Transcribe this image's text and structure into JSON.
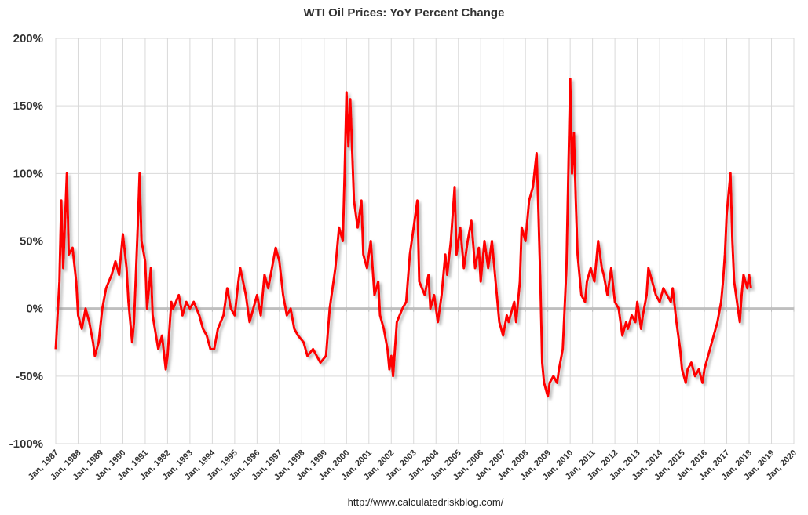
{
  "chart_data": {
    "type": "line",
    "title": "WTI Oil Prices: YoY Percent Change",
    "footer": "http://www.calculatedriskblog.com/",
    "xlabel": "",
    "ylabel": "",
    "ylim": [
      -100,
      200
    ],
    "yticks": [
      "200%",
      "150%",
      "100%",
      "50%",
      "0%",
      "-50%",
      "-100%"
    ],
    "ytick_values": [
      200,
      150,
      100,
      50,
      0,
      -50,
      -100
    ],
    "xlim": [
      "1987-01",
      "2020-01"
    ],
    "xticks": [
      "Jan, 1987",
      "Jan, 1988",
      "Jan, 1989",
      "Jan, 1990",
      "Jan, 1991",
      "Jan, 1992",
      "Jan, 1993",
      "Jan, 1994",
      "Jan, 1995",
      "Jan, 1996",
      "Jan, 1997",
      "Jan, 1998",
      "Jan, 1999",
      "Jan, 2000",
      "Jan, 2001",
      "Jan, 2002",
      "Jan, 2003",
      "Jan, 2004",
      "Jan, 2005",
      "Jan, 2006",
      "Jan, 2007",
      "Jan, 2008",
      "Jan, 2009",
      "Jan, 2010",
      "Jan, 2011",
      "Jan, 2012",
      "Jan, 2013",
      "Jan, 2014",
      "Jan, 2015",
      "Jan, 2016",
      "Jan, 2017",
      "Jan, 2018",
      "Jan, 2019",
      "Jan, 2020"
    ],
    "grid": true,
    "colors": {
      "series": "#ff0000",
      "zero_line": "#bfbfbf",
      "grid": "#d9d9d9"
    },
    "series": [
      {
        "points": [
          [
            "1987-01",
            -30
          ],
          [
            "1987-03",
            20
          ],
          [
            "1987-04",
            80
          ],
          [
            "1987-05",
            30
          ],
          [
            "1987-07",
            100
          ],
          [
            "1987-08",
            40
          ],
          [
            "1987-10",
            45
          ],
          [
            "1987-12",
            20
          ],
          [
            "1988-01",
            -5
          ],
          [
            "1988-03",
            -15
          ],
          [
            "1988-05",
            0
          ],
          [
            "1988-07",
            -10
          ],
          [
            "1988-09",
            -25
          ],
          [
            "1988-10",
            -35
          ],
          [
            "1988-12",
            -25
          ],
          [
            "1989-02",
            0
          ],
          [
            "1989-04",
            15
          ],
          [
            "1989-07",
            25
          ],
          [
            "1989-09",
            35
          ],
          [
            "1989-11",
            25
          ],
          [
            "1990-01",
            55
          ],
          [
            "1990-03",
            30
          ],
          [
            "1990-04",
            5
          ],
          [
            "1990-06",
            -25
          ],
          [
            "1990-07",
            -10
          ],
          [
            "1990-09",
            60
          ],
          [
            "1990-10",
            100
          ],
          [
            "1990-11",
            50
          ],
          [
            "1991-01",
            35
          ],
          [
            "1991-02",
            0
          ],
          [
            "1991-04",
            30
          ],
          [
            "1991-05",
            -5
          ],
          [
            "1991-08",
            -30
          ],
          [
            "1991-10",
            -20
          ],
          [
            "1991-12",
            -45
          ],
          [
            "1992-01",
            -35
          ],
          [
            "1992-03",
            5
          ],
          [
            "1992-04",
            0
          ],
          [
            "1992-07",
            10
          ],
          [
            "1992-09",
            -5
          ],
          [
            "1992-11",
            5
          ],
          [
            "1993-01",
            0
          ],
          [
            "1993-03",
            5
          ],
          [
            "1993-06",
            -5
          ],
          [
            "1993-08",
            -15
          ],
          [
            "1993-10",
            -20
          ],
          [
            "1993-12",
            -30
          ],
          [
            "1994-02",
            -30
          ],
          [
            "1994-04",
            -15
          ],
          [
            "1994-07",
            -5
          ],
          [
            "1994-09",
            15
          ],
          [
            "1994-11",
            0
          ],
          [
            "1995-01",
            -5
          ],
          [
            "1995-03",
            20
          ],
          [
            "1995-04",
            30
          ],
          [
            "1995-07",
            10
          ],
          [
            "1995-09",
            -10
          ],
          [
            "1995-11",
            0
          ],
          [
            "1996-01",
            10
          ],
          [
            "1996-03",
            -5
          ],
          [
            "1996-05",
            25
          ],
          [
            "1996-07",
            15
          ],
          [
            "1996-09",
            30
          ],
          [
            "1996-11",
            45
          ],
          [
            "1997-01",
            35
          ],
          [
            "1997-03",
            10
          ],
          [
            "1997-05",
            -5
          ],
          [
            "1997-07",
            0
          ],
          [
            "1997-09",
            -15
          ],
          [
            "1997-11",
            -20
          ],
          [
            "1998-02",
            -25
          ],
          [
            "1998-04",
            -35
          ],
          [
            "1998-07",
            -30
          ],
          [
            "1998-09",
            -35
          ],
          [
            "1998-11",
            -40
          ],
          [
            "1999-02",
            -35
          ],
          [
            "1999-04",
            0
          ],
          [
            "1999-07",
            30
          ],
          [
            "1999-09",
            60
          ],
          [
            "1999-11",
            50
          ],
          [
            "1999-12",
            100
          ],
          [
            "2000-01",
            160
          ],
          [
            "2000-02",
            120
          ],
          [
            "2000-03",
            155
          ],
          [
            "2000-05",
            80
          ],
          [
            "2000-07",
            60
          ],
          [
            "2000-09",
            80
          ],
          [
            "2000-10",
            40
          ],
          [
            "2000-12",
            30
          ],
          [
            "2001-02",
            50
          ],
          [
            "2001-04",
            10
          ],
          [
            "2001-06",
            20
          ],
          [
            "2001-07",
            -5
          ],
          [
            "2001-09",
            -15
          ],
          [
            "2001-11",
            -30
          ],
          [
            "2001-12",
            -45
          ],
          [
            "2002-01",
            -35
          ],
          [
            "2002-02",
            -50
          ],
          [
            "2002-04",
            -10
          ],
          [
            "2002-07",
            0
          ],
          [
            "2002-09",
            5
          ],
          [
            "2002-11",
            40
          ],
          [
            "2003-01",
            60
          ],
          [
            "2003-03",
            80
          ],
          [
            "2003-04",
            20
          ],
          [
            "2003-07",
            10
          ],
          [
            "2003-09",
            25
          ],
          [
            "2003-10",
            0
          ],
          [
            "2003-12",
            10
          ],
          [
            "2004-02",
            -10
          ],
          [
            "2004-04",
            10
          ],
          [
            "2004-06",
            40
          ],
          [
            "2004-07",
            25
          ],
          [
            "2004-09",
            50
          ],
          [
            "2004-11",
            90
          ],
          [
            "2004-12",
            40
          ],
          [
            "2005-02",
            60
          ],
          [
            "2005-04",
            30
          ],
          [
            "2005-06",
            50
          ],
          [
            "2005-08",
            65
          ],
          [
            "2005-10",
            30
          ],
          [
            "2005-12",
            45
          ],
          [
            "2006-01",
            20
          ],
          [
            "2006-03",
            50
          ],
          [
            "2006-05",
            30
          ],
          [
            "2006-07",
            50
          ],
          [
            "2006-09",
            20
          ],
          [
            "2006-11",
            -10
          ],
          [
            "2007-01",
            -20
          ],
          [
            "2007-03",
            -5
          ],
          [
            "2007-04",
            -10
          ],
          [
            "2007-07",
            5
          ],
          [
            "2007-08",
            -10
          ],
          [
            "2007-10",
            20
          ],
          [
            "2007-11",
            60
          ],
          [
            "2008-01",
            50
          ],
          [
            "2008-03",
            80
          ],
          [
            "2008-05",
            90
          ],
          [
            "2008-07",
            115
          ],
          [
            "2008-08",
            70
          ],
          [
            "2008-09",
            20
          ],
          [
            "2008-10",
            -40
          ],
          [
            "2008-11",
            -55
          ],
          [
            "2009-01",
            -65
          ],
          [
            "2009-02",
            -55
          ],
          [
            "2009-04",
            -50
          ],
          [
            "2009-06",
            -55
          ],
          [
            "2009-07",
            -45
          ],
          [
            "2009-09",
            -30
          ],
          [
            "2009-11",
            30
          ],
          [
            "2009-12",
            100
          ],
          [
            "2010-01",
            170
          ],
          [
            "2010-02",
            100
          ],
          [
            "2010-03",
            130
          ],
          [
            "2010-04",
            80
          ],
          [
            "2010-05",
            40
          ],
          [
            "2010-07",
            10
          ],
          [
            "2010-09",
            5
          ],
          [
            "2010-10",
            20
          ],
          [
            "2010-12",
            30
          ],
          [
            "2011-02",
            20
          ],
          [
            "2011-04",
            50
          ],
          [
            "2011-06",
            30
          ],
          [
            "2011-07",
            25
          ],
          [
            "2011-09",
            10
          ],
          [
            "2011-11",
            30
          ],
          [
            "2012-01",
            5
          ],
          [
            "2012-03",
            0
          ],
          [
            "2012-05",
            -20
          ],
          [
            "2012-07",
            -10
          ],
          [
            "2012-08",
            -15
          ],
          [
            "2012-10",
            -5
          ],
          [
            "2012-12",
            -10
          ],
          [
            "2013-01",
            5
          ],
          [
            "2013-03",
            -15
          ],
          [
            "2013-04",
            -5
          ],
          [
            "2013-06",
            10
          ],
          [
            "2013-07",
            30
          ],
          [
            "2013-09",
            20
          ],
          [
            "2013-11",
            10
          ],
          [
            "2014-01",
            5
          ],
          [
            "2014-03",
            15
          ],
          [
            "2014-05",
            10
          ],
          [
            "2014-07",
            5
          ],
          [
            "2014-08",
            15
          ],
          [
            "2014-10",
            -10
          ],
          [
            "2014-12",
            -30
          ],
          [
            "2015-01",
            -45
          ],
          [
            "2015-03",
            -55
          ],
          [
            "2015-04",
            -45
          ],
          [
            "2015-06",
            -40
          ],
          [
            "2015-08",
            -50
          ],
          [
            "2015-10",
            -45
          ],
          [
            "2015-12",
            -55
          ],
          [
            "2016-01",
            -45
          ],
          [
            "2016-03",
            -35
          ],
          [
            "2016-04",
            -30
          ],
          [
            "2016-06",
            -20
          ],
          [
            "2016-08",
            -10
          ],
          [
            "2016-10",
            5
          ],
          [
            "2016-11",
            20
          ],
          [
            "2016-12",
            40
          ],
          [
            "2017-01",
            70
          ],
          [
            "2017-03",
            100
          ],
          [
            "2017-04",
            50
          ],
          [
            "2017-05",
            20
          ],
          [
            "2017-07",
            0
          ],
          [
            "2017-08",
            -10
          ],
          [
            "2017-09",
            10
          ],
          [
            "2017-10",
            25
          ],
          [
            "2017-12",
            15
          ],
          [
            "2018-01",
            25
          ],
          [
            "2018-02",
            15
          ]
        ]
      }
    ]
  }
}
